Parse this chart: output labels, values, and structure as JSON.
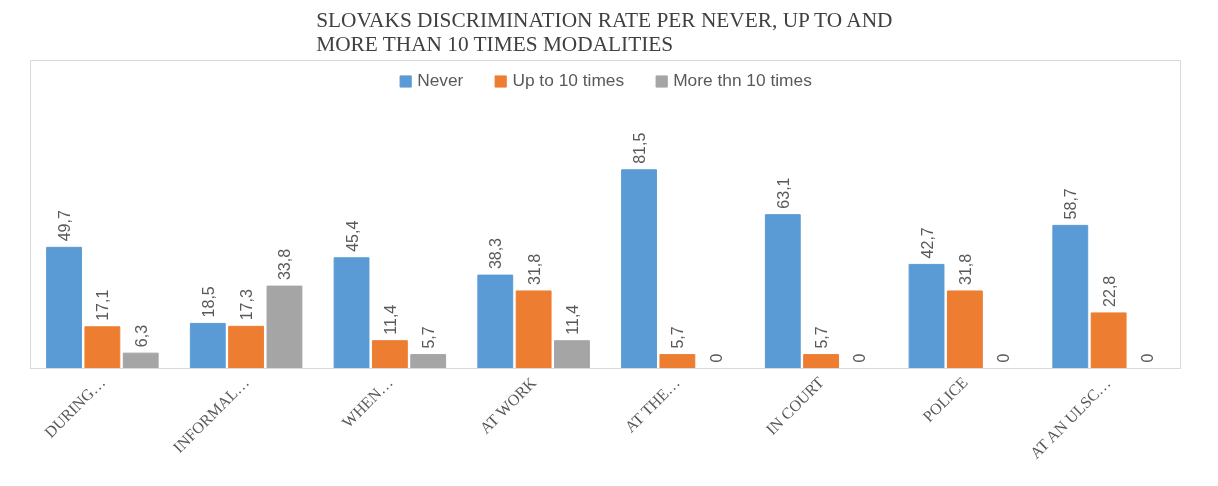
{
  "chart_data": {
    "type": "bar",
    "title": "SLOVAKS DISCRIMINATION RATE PER NEVER, UP TO AND\nMORE THAN 10 TIMES MODALITIES",
    "categories": [
      "DURING…",
      "INFORMAL…",
      "WHEN…",
      "AT WORK",
      "AT THE…",
      "IN COURT",
      "POLICE",
      "AT AN ULSC…"
    ],
    "series": [
      {
        "name": "Never",
        "color": "#5b9bd5",
        "values": [
          49.7,
          18.5,
          45.4,
          38.3,
          81.5,
          63.1,
          42.7,
          58.7
        ],
        "value_labels": [
          "49,7",
          "18,5",
          "45,4",
          "38,3",
          "81,5",
          "63,1",
          "42,7",
          "58,7"
        ]
      },
      {
        "name": "Up to 10 times",
        "color": "#ed7d31",
        "values": [
          17.1,
          17.3,
          11.4,
          31.8,
          5.7,
          5.7,
          31.8,
          22.8
        ],
        "value_labels": [
          "17,1",
          "17,3",
          "11,4",
          "31,8",
          "5,7",
          "5,7",
          "31,8",
          "22,8"
        ]
      },
      {
        "name": "More thn 10 times",
        "color": "#a5a5a5",
        "values": [
          6.3,
          33.8,
          5.7,
          11.4,
          0,
          0,
          0,
          0
        ],
        "value_labels": [
          "6,3",
          "33,8",
          "5,7",
          "11,4",
          "0",
          "0",
          "0",
          "0"
        ]
      }
    ],
    "legend": "top",
    "grid": false
  }
}
